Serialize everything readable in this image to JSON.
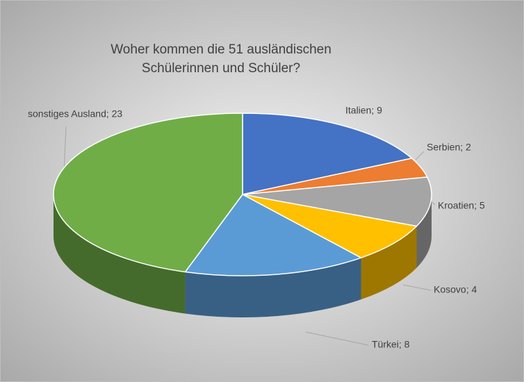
{
  "chart_data": {
    "type": "pie3d",
    "title": [
      "Woher kommen  die 51 ausländischen",
      "Schülerinnen  und Schüler?"
    ],
    "categories": [
      "Italien",
      "Serbien",
      "Kroatien",
      "Kosovo",
      "Türkei",
      "sonstiges Ausland"
    ],
    "values": [
      9,
      2,
      5,
      4,
      8,
      23
    ],
    "value_labels": [
      "Italien; 9",
      "Serbien; 2",
      "Kroatien; 5",
      "Kosovo; 4",
      "Türkei; 8",
      "sonstiges Ausland; 23"
    ],
    "colors": [
      "#4472c4",
      "#ed7d31",
      "#a5a5a5",
      "#ffc000",
      "#5b9bd5",
      "#70ad47"
    ]
  }
}
